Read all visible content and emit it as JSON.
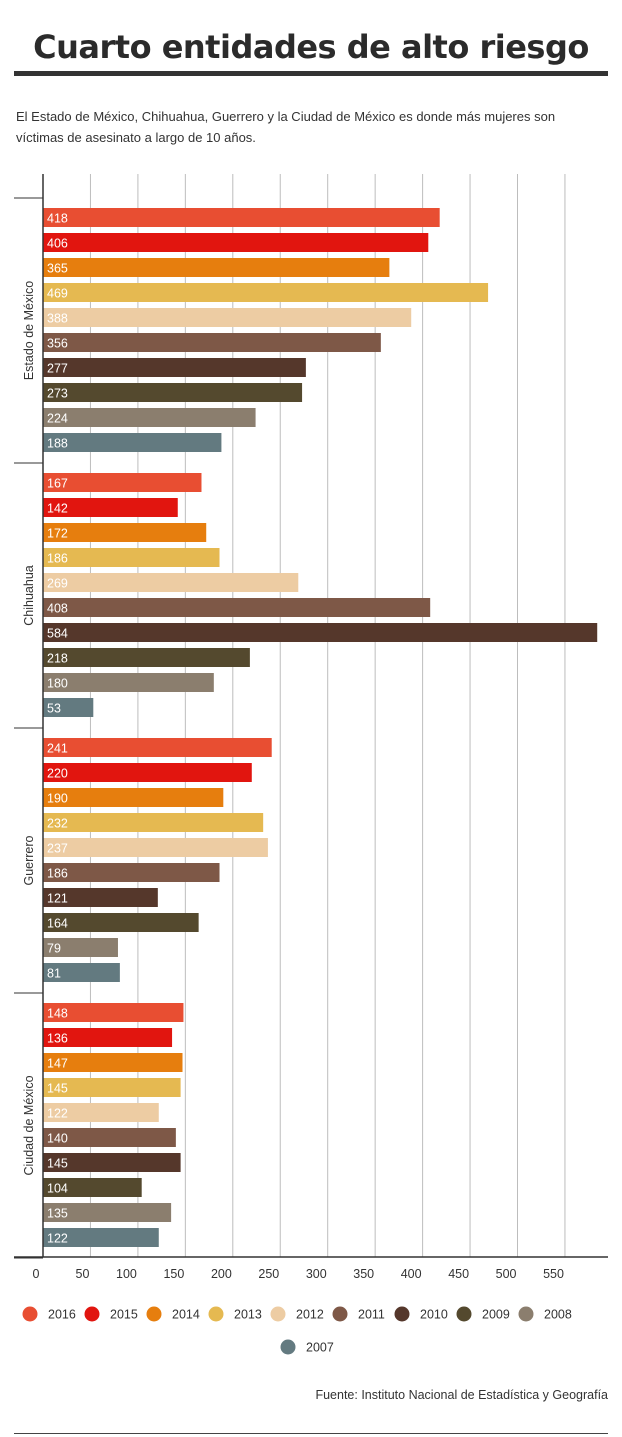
{
  "header": {
    "title": "Cuarto entidades de alto riesgo",
    "subtitle": "El Estado de México, Chihuahua, Guerrero y la Ciudad de México es donde más mujeres son víctimas de asesinato a largo de 10 años."
  },
  "footer": {
    "source": "Fuente: Instituto Nacional de Estadística y Geografía"
  },
  "colors": {
    "2016": "#e84e32",
    "2015": "#e1150f",
    "2014": "#e67e0e",
    "2013": "#e5b951",
    "2012": "#edcca3",
    "2011": "#7e5847",
    "2010": "#55372b",
    "2009": "#54492e",
    "2008": "#8b7e6e",
    "2007": "#637a80"
  },
  "chart_data": {
    "type": "bar",
    "orientation": "horizontal",
    "categories": [
      "Estado de México",
      "Chihuahua",
      "Guerrero",
      "Ciudad de México"
    ],
    "series": [
      {
        "name": "2016",
        "values": [
          418,
          167,
          241,
          148
        ]
      },
      {
        "name": "2015",
        "values": [
          406,
          142,
          220,
          136
        ]
      },
      {
        "name": "2014",
        "values": [
          365,
          172,
          190,
          147
        ]
      },
      {
        "name": "2013",
        "values": [
          469,
          186,
          232,
          145
        ]
      },
      {
        "name": "2012",
        "values": [
          388,
          269,
          237,
          122
        ]
      },
      {
        "name": "2011",
        "values": [
          356,
          408,
          186,
          140
        ]
      },
      {
        "name": "2010",
        "values": [
          277,
          584,
          121,
          145
        ]
      },
      {
        "name": "2009",
        "values": [
          273,
          218,
          164,
          104
        ]
      },
      {
        "name": "2008",
        "values": [
          224,
          180,
          79,
          135
        ]
      },
      {
        "name": "2007",
        "values": [
          188,
          53,
          81,
          122
        ]
      }
    ],
    "xticks": [
      0,
      50,
      100,
      150,
      200,
      250,
      300,
      350,
      400,
      450,
      500,
      550
    ],
    "xlim": [
      0,
      585
    ],
    "grid": true,
    "legend_position": "bottom",
    "xlabel": "",
    "ylabel": ""
  }
}
